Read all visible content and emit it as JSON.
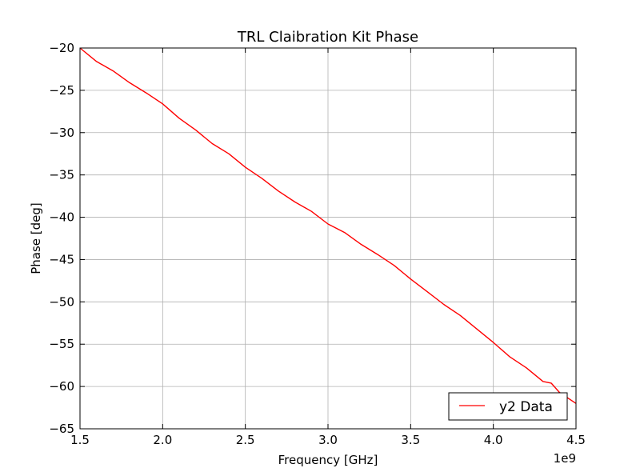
{
  "chart_data": {
    "type": "line",
    "title": "TRL Claibration Kit Phase",
    "xlabel": "Frequency [GHz]",
    "ylabel": "Phase [deg]",
    "x_offset_label": "1e9",
    "xlim": [
      1.5,
      4.5
    ],
    "ylim": [
      -65,
      -20
    ],
    "xticks": [
      1.5,
      2.0,
      2.5,
      3.0,
      3.5,
      4.0,
      4.5
    ],
    "xtick_labels": [
      "1.5",
      "2.0",
      "2.5",
      "3.0",
      "3.5",
      "4.0",
      "4.5"
    ],
    "yticks": [
      -65,
      -60,
      -55,
      -50,
      -45,
      -40,
      -35,
      -30,
      -25,
      -20
    ],
    "ytick_labels": [
      "−65",
      "−60",
      "−55",
      "−50",
      "−45",
      "−40",
      "−35",
      "−30",
      "−25",
      "−20"
    ],
    "grid": true,
    "legend_position": "lower-right",
    "series": [
      {
        "name": "y2 Data",
        "color": "#ff0000",
        "x": [
          1.5,
          1.6,
          1.7,
          1.8,
          1.9,
          2.0,
          2.1,
          2.2,
          2.3,
          2.4,
          2.5,
          2.6,
          2.7,
          2.8,
          2.9,
          3.0,
          3.1,
          3.2,
          3.3,
          3.4,
          3.5,
          3.6,
          3.7,
          3.8,
          3.9,
          4.0,
          4.1,
          4.2,
          4.3,
          4.35,
          4.4,
          4.5
        ],
        "y": [
          -20.0,
          -21.6,
          -22.7,
          -24.1,
          -25.3,
          -26.6,
          -28.3,
          -29.7,
          -31.3,
          -32.5,
          -34.1,
          -35.4,
          -36.9,
          -38.2,
          -39.3,
          -40.8,
          -41.8,
          -43.2,
          -44.4,
          -45.7,
          -47.3,
          -48.8,
          -50.3,
          -51.6,
          -53.2,
          -54.8,
          -56.5,
          -57.8,
          -59.4,
          -59.6,
          -60.7,
          -62.0
        ]
      }
    ]
  }
}
